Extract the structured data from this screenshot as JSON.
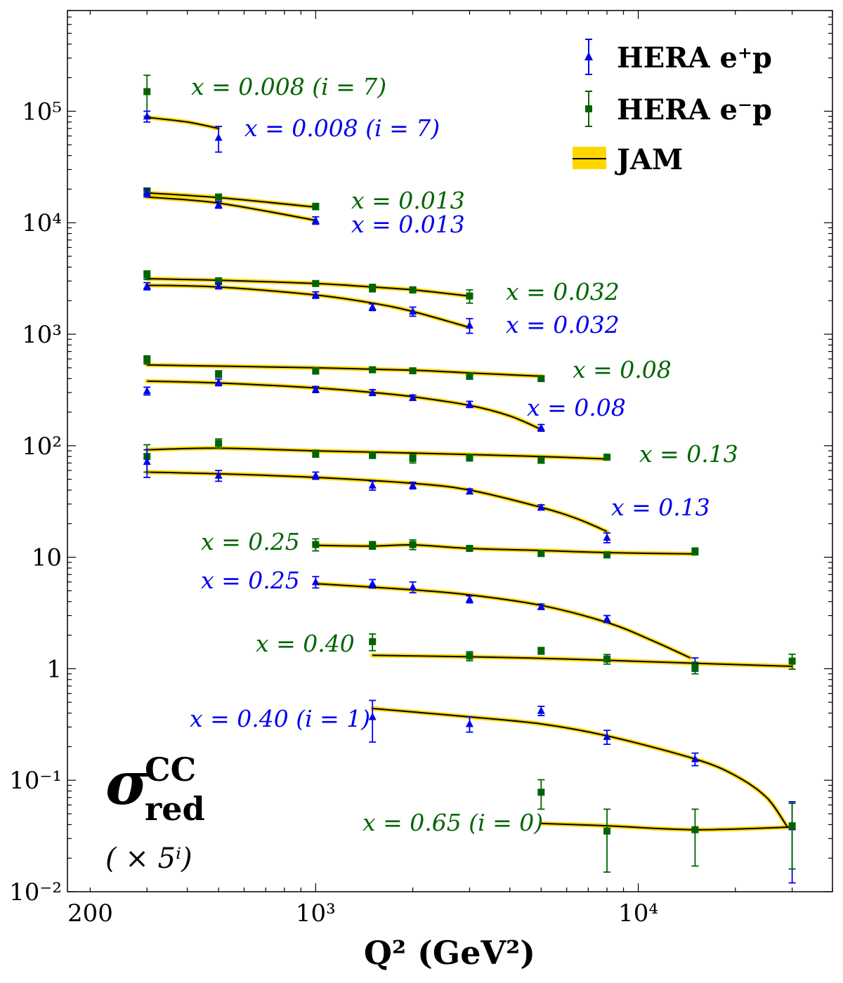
{
  "chart_data": {
    "type": "scatter",
    "xscale": "log",
    "yscale": "log",
    "xlim": [
      170,
      40000
    ],
    "ylim": [
      0.01,
      800000
    ],
    "xlabel": "Q² (GeV²)",
    "x_ticks": [
      {
        "value": 200,
        "label": "200"
      },
      {
        "value": 1000,
        "label": "10³"
      },
      {
        "value": 10000,
        "label": "10⁴"
      }
    ],
    "y_ticks": [
      {
        "value": 0.01,
        "label": "10⁻²"
      },
      {
        "value": 0.1,
        "label": "10⁻¹"
      },
      {
        "value": 1,
        "label": "1"
      },
      {
        "value": 10,
        "label": "10"
      },
      {
        "value": 100,
        "label": "10²"
      },
      {
        "value": 1000,
        "label": "10³"
      },
      {
        "value": 10000,
        "label": "10⁴"
      },
      {
        "value": 100000,
        "label": "10⁵"
      }
    ],
    "ylabel_main": "σ",
    "ylabel_sup": "CC",
    "ylabel_sub": "red",
    "ylabel_scale": "( × 5ⁱ)",
    "colors": {
      "ep_plus": "#0000ee",
      "ep_minus": "#006400",
      "jam_line": "#000000",
      "jam_band": "#ffd700"
    },
    "legend": {
      "placement": "top-right",
      "entries": [
        {
          "label": "HERA e⁺p",
          "marker": "triangle",
          "color": "#0000ee"
        },
        {
          "label": "HERA e⁻p",
          "marker": "square",
          "color": "#006400"
        },
        {
          "label": "JAM",
          "marker": "band",
          "color": "#000000"
        }
      ]
    },
    "series": [
      {
        "kind": "ep_minus",
        "label": "x = 0.008 (i = 7)",
        "points": [
          [
            300,
            150000,
            60000
          ],
          [
            500,
            null,
            null
          ]
        ],
        "curve": []
      },
      {
        "kind": "ep_plus",
        "label": "x = 0.008 (i = 7)",
        "points": [
          [
            300,
            90000,
            10000
          ],
          [
            500,
            58000,
            15000
          ]
        ],
        "curve": [
          [
            300,
            88000
          ],
          [
            400,
            80000
          ],
          [
            500,
            70000
          ]
        ]
      },
      {
        "kind": "ep_minus",
        "label": "x = 0.013",
        "points": [
          [
            300,
            19000,
            1500
          ],
          [
            500,
            17000,
            1000
          ],
          [
            1000,
            14000,
            900
          ]
        ],
        "curve": [
          [
            300,
            18500
          ],
          [
            500,
            16800
          ],
          [
            1000,
            13800
          ]
        ]
      },
      {
        "kind": "ep_plus",
        "label": "x = 0.013",
        "points": [
          [
            300,
            18500,
            1500
          ],
          [
            500,
            14500,
            1000
          ],
          [
            1000,
            10500,
            800
          ]
        ],
        "curve": [
          [
            300,
            17000
          ],
          [
            500,
            15000
          ],
          [
            1000,
            10500
          ]
        ]
      },
      {
        "kind": "ep_minus",
        "label": "x = 0.032",
        "points": [
          [
            300,
            3400,
            300
          ],
          [
            500,
            3000,
            200
          ],
          [
            1000,
            2850,
            150
          ],
          [
            1500,
            2600,
            200
          ],
          [
            2000,
            2500,
            150
          ],
          [
            3000,
            2200,
            300
          ]
        ],
        "curve": [
          [
            300,
            3150
          ],
          [
            500,
            3050
          ],
          [
            1000,
            2850
          ],
          [
            1500,
            2650
          ],
          [
            2000,
            2500
          ],
          [
            3000,
            2200
          ]
        ]
      },
      {
        "kind": "ep_plus",
        "label": "x = 0.032",
        "points": [
          [
            300,
            2700,
            200
          ],
          [
            500,
            2700,
            150
          ],
          [
            1000,
            2250,
            150
          ],
          [
            1500,
            1750,
            120
          ],
          [
            2000,
            1600,
            150
          ],
          [
            3000,
            1200,
            180
          ]
        ],
        "curve": [
          [
            300,
            2750
          ],
          [
            500,
            2650
          ],
          [
            1000,
            2250
          ],
          [
            1500,
            1900
          ],
          [
            2000,
            1600
          ],
          [
            3000,
            1150
          ]
        ]
      },
      {
        "kind": "ep_minus",
        "label": "x = 0.08",
        "points": [
          [
            300,
            590,
            50
          ],
          [
            500,
            440,
            30
          ],
          [
            1000,
            470,
            30
          ],
          [
            1500,
            480,
            25
          ],
          [
            2000,
            470,
            25
          ],
          [
            3000,
            420,
            25
          ],
          [
            5000,
            400,
            20
          ]
        ],
        "curve": [
          [
            300,
            530
          ],
          [
            1000,
            500
          ],
          [
            2000,
            475
          ],
          [
            3000,
            450
          ],
          [
            5000,
            420
          ]
        ]
      },
      {
        "kind": "ep_plus",
        "label": "x = 0.08",
        "points": [
          [
            300,
            310,
            25
          ],
          [
            500,
            370,
            25
          ],
          [
            1000,
            320,
            20
          ],
          [
            1500,
            300,
            18
          ],
          [
            2000,
            270,
            15
          ],
          [
            3000,
            235,
            15
          ],
          [
            5000,
            145,
            10
          ]
        ],
        "curve": [
          [
            300,
            380
          ],
          [
            500,
            365
          ],
          [
            1000,
            330
          ],
          [
            1500,
            300
          ],
          [
            2000,
            275
          ],
          [
            3000,
            230
          ],
          [
            4000,
            185
          ],
          [
            5000,
            140
          ]
        ]
      },
      {
        "kind": "ep_minus",
        "label": "x = 0.13",
        "points": [
          [
            300,
            80,
            22
          ],
          [
            500,
            105,
            10
          ],
          [
            1000,
            85,
            6
          ],
          [
            1500,
            82,
            5
          ],
          [
            2000,
            77,
            7
          ],
          [
            3000,
            78,
            5
          ],
          [
            5000,
            74,
            4
          ],
          [
            8000,
            79,
            4
          ]
        ],
        "curve": [
          [
            300,
            92
          ],
          [
            500,
            95
          ],
          [
            1000,
            90
          ],
          [
            2000,
            86
          ],
          [
            5000,
            80
          ],
          [
            8000,
            76
          ]
        ]
      },
      {
        "kind": "ep_plus",
        "label": "x = 0.13",
        "points": [
          [
            300,
            72,
            20
          ],
          [
            500,
            54,
            6
          ],
          [
            1000,
            54,
            4
          ],
          [
            1500,
            44,
            4
          ],
          [
            2000,
            44,
            3
          ],
          [
            3000,
            39,
            2
          ],
          [
            5000,
            28,
            1.5
          ],
          [
            8000,
            15,
            1.5
          ]
        ],
        "curve": [
          [
            300,
            58
          ],
          [
            500,
            56
          ],
          [
            1000,
            52
          ],
          [
            2000,
            46
          ],
          [
            3000,
            40
          ],
          [
            5000,
            28
          ],
          [
            6500,
            22
          ],
          [
            8000,
            17
          ]
        ]
      },
      {
        "kind": "ep_minus",
        "label": "x = 0.25",
        "points": [
          [
            1000,
            13,
            1.6
          ],
          [
            1500,
            12.8,
            1.0
          ],
          [
            2000,
            13,
            1.3
          ],
          [
            3000,
            12,
            0.7
          ],
          [
            5000,
            10.8,
            0.6
          ],
          [
            8000,
            10.5,
            0.6
          ],
          [
            15000,
            11.3,
            0.8
          ]
        ],
        "curve": [
          [
            1000,
            12.8
          ],
          [
            1500,
            12.6
          ],
          [
            2000,
            12.9
          ],
          [
            3000,
            12.0
          ],
          [
            5000,
            11.5
          ],
          [
            8000,
            11.0
          ],
          [
            15000,
            10.7
          ]
        ]
      },
      {
        "kind": "ep_plus",
        "label": "x = 0.25",
        "points": [
          [
            1000,
            6.0,
            0.7
          ],
          [
            1500,
            5.8,
            0.5
          ],
          [
            2000,
            5.4,
            0.6
          ],
          [
            3000,
            4.2,
            0.3
          ],
          [
            5000,
            3.6,
            0.2
          ],
          [
            8000,
            2.8,
            0.2
          ],
          [
            15000,
            1.1,
            0.15
          ]
        ],
        "curve": [
          [
            1000,
            5.8
          ],
          [
            2000,
            5.1
          ],
          [
            3000,
            4.6
          ],
          [
            5000,
            3.7
          ],
          [
            8000,
            2.6
          ],
          [
            11000,
            1.8
          ],
          [
            14500,
            1.25
          ]
        ]
      },
      {
        "kind": "ep_minus",
        "label": "x = 0.40",
        "points": [
          [
            1500,
            1.75,
            0.3
          ],
          [
            3000,
            1.3,
            0.12
          ],
          [
            5000,
            1.45,
            0.1
          ],
          [
            8000,
            1.22,
            0.12
          ],
          [
            15000,
            1.02,
            0.12
          ],
          [
            30000,
            1.17,
            0.18
          ]
        ],
        "curve": [
          [
            1500,
            1.32
          ],
          [
            3000,
            1.28
          ],
          [
            5000,
            1.24
          ],
          [
            8000,
            1.19
          ],
          [
            15000,
            1.12
          ],
          [
            30000,
            1.05
          ]
        ]
      },
      {
        "kind": "ep_plus",
        "label": "x = 0.40 (i = 1)",
        "points": [
          [
            1500,
            0.37,
            0.15
          ],
          [
            3000,
            0.32,
            0.05
          ],
          [
            5000,
            0.42,
            0.04
          ],
          [
            8000,
            0.245,
            0.035
          ],
          [
            15000,
            0.155,
            0.02
          ],
          [
            30000,
            0.038,
            0.026
          ]
        ],
        "curve": [
          [
            1500,
            0.44
          ],
          [
            3000,
            0.37
          ],
          [
            5000,
            0.32
          ],
          [
            8000,
            0.25
          ],
          [
            15000,
            0.155
          ],
          [
            20000,
            0.11
          ],
          [
            25000,
            0.07
          ],
          [
            29000,
            0.038
          ]
        ]
      },
      {
        "kind": "ep_minus",
        "label": "x = 0.65 (i = 0)",
        "points": [
          [
            5000,
            0.078,
            0.023
          ],
          [
            8000,
            0.035,
            0.02
          ],
          [
            15000,
            0.036,
            0.019
          ],
          [
            30000,
            0.039,
            0.023
          ]
        ],
        "curve": [
          [
            5000,
            0.041
          ],
          [
            8000,
            0.039
          ],
          [
            15000,
            0.036
          ],
          [
            30000,
            0.038
          ]
        ]
      }
    ]
  }
}
